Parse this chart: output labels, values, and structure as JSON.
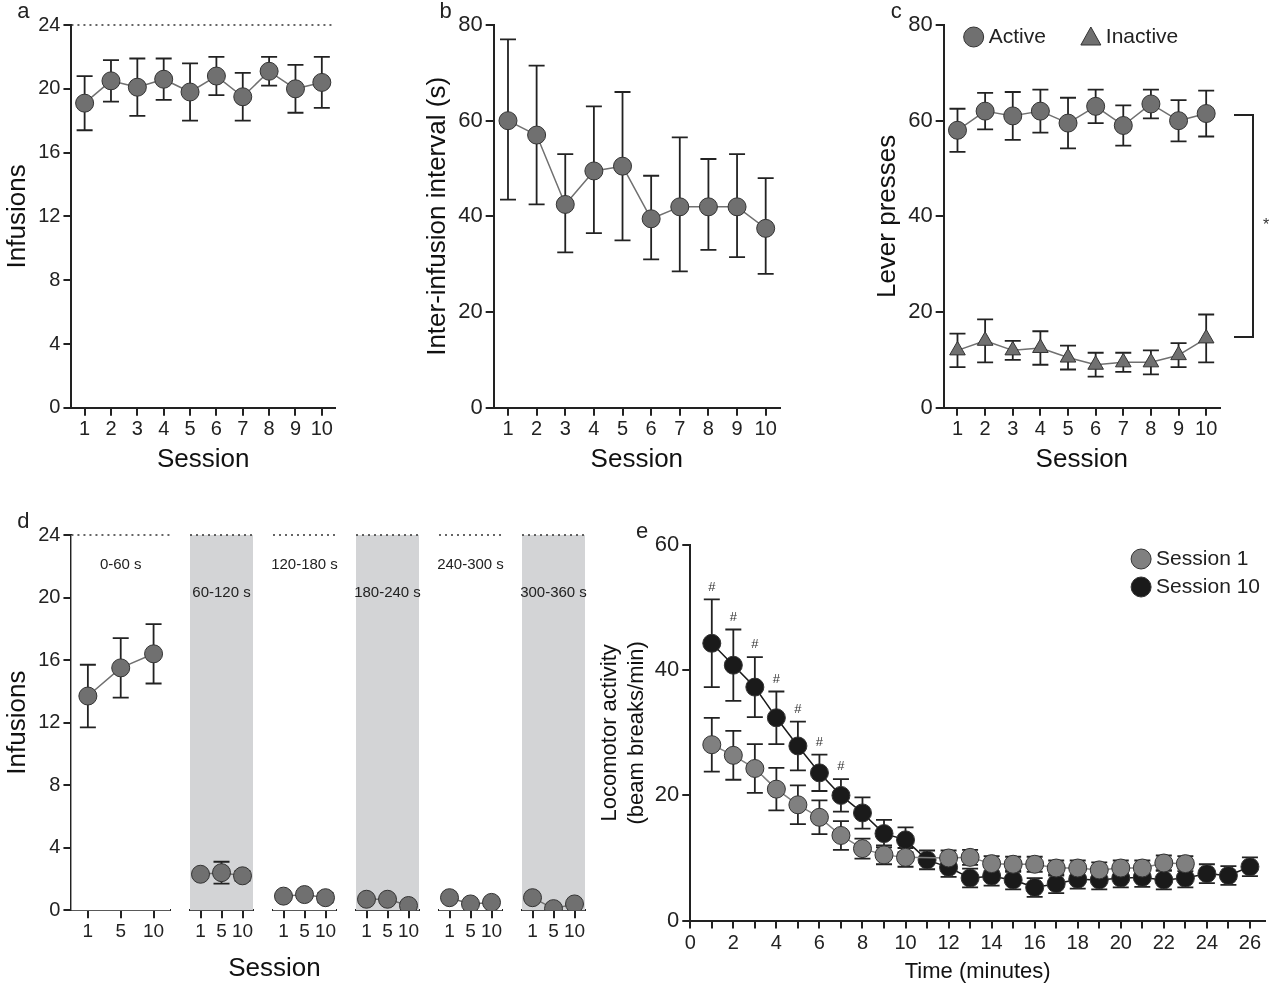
{
  "chart_data": [
    {
      "type": "line",
      "title": "a",
      "xlabel": "Session",
      "ylabel": "Infusions",
      "categories": [
        "1",
        "2",
        "3",
        "4",
        "5",
        "6",
        "7",
        "8",
        "9",
        "10"
      ],
      "values": [
        19.1,
        20.5,
        20.1,
        20.6,
        19.8,
        20.8,
        19.5,
        21.1,
        20.0,
        20.4
      ],
      "errors": [
        1.7,
        1.3,
        1.8,
        1.3,
        1.8,
        1.2,
        1.5,
        0.9,
        1.5,
        1.6
      ],
      "color": "#707070",
      "marker": "circle",
      "ylim": [
        0,
        24
      ],
      "yticks": [
        0,
        4,
        8,
        12,
        16,
        20,
        24
      ],
      "ref_lines": [
        {
          "axis": "y",
          "value": 24,
          "line_style": "dotted",
          "color": "#333333"
        }
      ]
    },
    {
      "type": "line",
      "title": "b",
      "xlabel": "Session",
      "ylabel": "Inter-infusion interval (s)",
      "categories": [
        "1",
        "2",
        "3",
        "4",
        "5",
        "6",
        "7",
        "8",
        "9",
        "10"
      ],
      "values": [
        60,
        57,
        42.5,
        49.5,
        50.5,
        39.5,
        42,
        42,
        42,
        37.5
      ],
      "errors": [
        [
          43.5,
          77
        ],
        [
          42.5,
          71.5
        ],
        [
          32.5,
          53
        ],
        [
          36.5,
          63
        ],
        [
          35,
          66
        ],
        [
          31,
          48.5
        ],
        [
          28.5,
          56.5
        ],
        [
          33,
          52
        ],
        [
          31.5,
          53
        ],
        [
          28,
          48
        ]
      ],
      "color": "#707070",
      "marker": "circle",
      "ylim": [
        0,
        80
      ],
      "yticks": [
        0,
        20,
        40,
        60,
        80
      ]
    },
    {
      "type": "line",
      "title": "c",
      "xlabel": "Session",
      "ylabel": "Lever presses",
      "categories": [
        "1",
        "2",
        "3",
        "4",
        "5",
        "6",
        "7",
        "8",
        "9",
        "10"
      ],
      "series": [
        {
          "name": "Active",
          "color": "#707070",
          "marker": "circle",
          "values": [
            58,
            62,
            61,
            62,
            59.5,
            63,
            59,
            63.5,
            60,
            61.5
          ],
          "errors": [
            4.5,
            3.8,
            5,
            4.5,
            5.3,
            3.5,
            4.2,
            3,
            4.3,
            4.8
          ]
        },
        {
          "name": "Inactive",
          "color": "#707070",
          "marker": "triangle",
          "values": [
            12,
            14,
            12,
            12.5,
            10.5,
            9,
            9.5,
            9.5,
            11,
            14.5
          ],
          "errors": [
            3.5,
            4.5,
            2,
            3.5,
            2.5,
            2.5,
            2,
            2.5,
            2.5,
            5
          ]
        }
      ],
      "legend": "top",
      "ylim": [
        0,
        80
      ],
      "yticks": [
        0,
        20,
        40,
        60,
        80
      ],
      "annotations": [
        "*"
      ]
    },
    {
      "type": "line",
      "title": "d",
      "ylabel": "Infusions",
      "categories": [
        "1",
        "5",
        "10"
      ],
      "values": [
        13.7,
        15.5,
        16.4
      ],
      "errors": [
        2,
        1.9,
        1.9
      ],
      "color": "#707070",
      "marker": "circle",
      "ylim": [
        0,
        24
      ],
      "yticks": [
        0,
        4,
        8,
        12,
        16,
        20,
        24
      ],
      "bands": [
        {
          "axis": "x",
          "from": "1",
          "to": "10",
          "label": "0-60 s",
          "color": "#ffffff"
        }
      ],
      "ref_lines": [
        {
          "axis": "y",
          "value": 24,
          "line_style": "dotted",
          "color": "#333333"
        }
      ]
    },
    {
      "type": "line",
      "categories": [
        "1",
        "5",
        "10"
      ],
      "values": [
        2.3,
        2.4,
        2.2
      ],
      "errors": [
        null,
        0.7,
        0.3
      ],
      "color": "#707070",
      "marker": "circle",
      "ylim": [
        0,
        24
      ],
      "yticks": [
        0,
        4,
        8,
        12,
        16,
        20,
        24
      ],
      "tick_labels": "x",
      "bands": [
        {
          "axis": "x",
          "from": "1",
          "to": "10",
          "label": "60-120 s",
          "color": "#d3d4d6"
        }
      ],
      "ref_lines": [
        {
          "axis": "y",
          "value": 24,
          "line_style": "dotted",
          "color": "#333333"
        }
      ]
    },
    {
      "type": "line",
      "xlabel": "Session",
      "categories": [
        "1",
        "5",
        "10"
      ],
      "values": [
        0.9,
        1.0,
        0.8
      ],
      "errors": [
        null,
        null,
        0.3
      ],
      "color": "#707070",
      "marker": "circle",
      "ylim": [
        0,
        24
      ],
      "yticks": [
        0,
        4,
        8,
        12,
        16,
        20,
        24
      ],
      "tick_labels": "x",
      "bands": [
        {
          "axis": "x",
          "from": "1",
          "to": "10",
          "label": "120-180 s",
          "color": "#ffffff"
        }
      ],
      "ref_lines": [
        {
          "axis": "y",
          "value": 24,
          "line_style": "dotted",
          "color": "#333333"
        }
      ]
    },
    {
      "type": "line",
      "categories": [
        "1",
        "5",
        "10"
      ],
      "values": [
        0.7,
        0.7,
        0.3
      ],
      "color": "#707070",
      "marker": "circle",
      "ylim": [
        0,
        24
      ],
      "yticks": [
        0,
        4,
        8,
        12,
        16,
        20,
        24
      ],
      "tick_labels": "x",
      "bands": [
        {
          "axis": "x",
          "from": "1",
          "to": "10",
          "label": "180-240 s",
          "color": "#d3d4d6"
        }
      ],
      "ref_lines": [
        {
          "axis": "y",
          "value": 24,
          "line_style": "dotted",
          "color": "#333333"
        }
      ]
    },
    {
      "type": "line",
      "categories": [
        "1",
        "5",
        "10"
      ],
      "values": [
        0.8,
        0.4,
        0.5
      ],
      "color": "#707070",
      "marker": "circle",
      "ylim": [
        0,
        24
      ],
      "yticks": [
        0,
        4,
        8,
        12,
        16,
        20,
        24
      ],
      "tick_labels": "x",
      "bands": [
        {
          "axis": "x",
          "from": "1",
          "to": "10",
          "label": "240-300 s",
          "color": "#ffffff"
        }
      ],
      "ref_lines": [
        {
          "axis": "y",
          "value": 24,
          "line_style": "dotted",
          "color": "#333333"
        }
      ]
    },
    {
      "type": "line",
      "categories": [
        "1",
        "5",
        "10"
      ],
      "values": [
        0.8,
        0.1,
        0.4
      ],
      "color": "#707070",
      "marker": "circle",
      "ylim": [
        0,
        24
      ],
      "yticks": [
        0,
        4,
        8,
        12,
        16,
        20,
        24
      ],
      "tick_labels": "x",
      "bands": [
        {
          "axis": "x",
          "from": "1",
          "to": "10",
          "label": "300-360 s",
          "color": "#d3d4d6"
        }
      ],
      "ref_lines": [
        {
          "axis": "y",
          "value": 24,
          "line_style": "dotted",
          "color": "#333333"
        }
      ]
    },
    {
      "type": "line",
      "title": "e",
      "xlabel": "Time (minutes)",
      "ylabel": "Locomotor activity\n(beam breaks/min)",
      "x": [
        1,
        2,
        3,
        4,
        5,
        6,
        7,
        8,
        9,
        10,
        11,
        12,
        13,
        14,
        15,
        16,
        17,
        18,
        19,
        20,
        21,
        22,
        23,
        24,
        25,
        26
      ],
      "marker": "circle",
      "legend": "top right",
      "series": [
        {
          "name": "Session 1",
          "color": "#808080",
          "values": [
            28.1,
            26.4,
            24.3,
            21.0,
            18.5,
            16.5,
            13.6,
            11.5,
            10.5,
            10.1,
            null,
            10.0,
            10.1,
            9.1,
            9.0,
            9.0,
            8.4,
            8.4,
            8.1,
            8.4,
            8.4,
            9.2,
            9.1,
            null,
            null,
            null
          ],
          "errors": [
            4.3,
            3.9,
            3.9,
            3.4,
            3.1,
            2.7,
            2.3,
            1.6,
            1.5,
            1.5,
            null,
            1.2,
            1.2,
            1.2,
            1.2,
            1.2,
            1.2,
            1.2,
            1.2,
            1.2,
            1.2,
            1.2,
            1.2,
            null,
            null,
            null
          ]
        },
        {
          "name": "Session 10",
          "color": "#1a1a1a",
          "values": [
            44.3,
            40.8,
            37.3,
            32.4,
            27.9,
            23.6,
            20.0,
            17.2,
            13.9,
            12.9,
            9.7,
            8.5,
            6.8,
            7.1,
            6.5,
            5.3,
            5.9,
            6.6,
            6.5,
            6.8,
            6.9,
            6.5,
            6.8,
            7.5,
            7.2,
            8.6
          ],
          "errors": [
            7,
            5.7,
            4.8,
            4.2,
            3.9,
            2.9,
            2.6,
            2.5,
            2.2,
            2,
            1.5,
            1.5,
            1.5,
            1.5,
            1.5,
            1.5,
            1.5,
            1.5,
            1.5,
            1.5,
            1.5,
            1.5,
            1.5,
            1.5,
            1.5,
            1.5
          ]
        }
      ],
      "xlim": [
        0,
        26.7
      ],
      "xticks": [
        0,
        {
          "value": 1,
          "label": null
        },
        2,
        {
          "value": 3,
          "label": null
        },
        4,
        {
          "value": 5,
          "label": null
        },
        6,
        {
          "value": 7,
          "label": null
        },
        8,
        {
          "value": 9,
          "label": null
        },
        10,
        {
          "value": 11,
          "label": null
        },
        12,
        {
          "value": 13,
          "label": null
        },
        14,
        {
          "value": 15,
          "label": null
        },
        16,
        {
          "value": 17,
          "label": null
        },
        18,
        {
          "value": 19,
          "label": null
        },
        20,
        {
          "value": 21,
          "label": null
        },
        22,
        {
          "value": 23,
          "label": null
        },
        24,
        {
          "value": 25,
          "label": null
        },
        26
      ],
      "ylim": [
        0,
        60
      ],
      "yticks": [
        0,
        20,
        40,
        60
      ],
      "annotations": [
        "#",
        "#",
        "#",
        "#",
        "#",
        "#",
        "#"
      ]
    }
  ]
}
